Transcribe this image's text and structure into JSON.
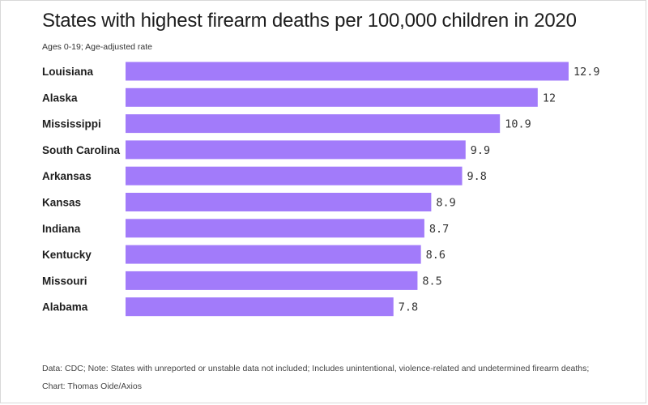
{
  "title": "States with highest firearm deaths per 100,000 children in 2020",
  "subtitle": "Ages 0-19; Age-adjusted rate",
  "footer": "Data: CDC; Note: States with unreported or unstable data not included; Includes unintentional, violence-related and undetermined firearm deaths; Chart: Thomas Oide/Axios",
  "colors": {
    "bar": "#a27bfa"
  },
  "chart_data": {
    "type": "bar",
    "orientation": "horizontal",
    "title": "States with highest firearm deaths per 100,000 children in 2020",
    "subtitle": "Ages 0-19; Age-adjusted rate",
    "categories": [
      "Louisiana",
      "Alaska",
      "Mississippi",
      "South Carolina",
      "Arkansas",
      "Kansas",
      "Indiana",
      "Kentucky",
      "Missouri",
      "Alabama"
    ],
    "values": [
      12.9,
      12,
      10.9,
      9.9,
      9.8,
      8.9,
      8.7,
      8.6,
      8.5,
      7.8
    ],
    "value_labels": [
      "12.9",
      "12",
      "10.9",
      "9.9",
      "9.8",
      "8.9",
      "8.7",
      "8.6",
      "8.5",
      "7.8"
    ],
    "xlim": [
      0,
      12.9
    ],
    "grid": false,
    "legend": "none"
  }
}
